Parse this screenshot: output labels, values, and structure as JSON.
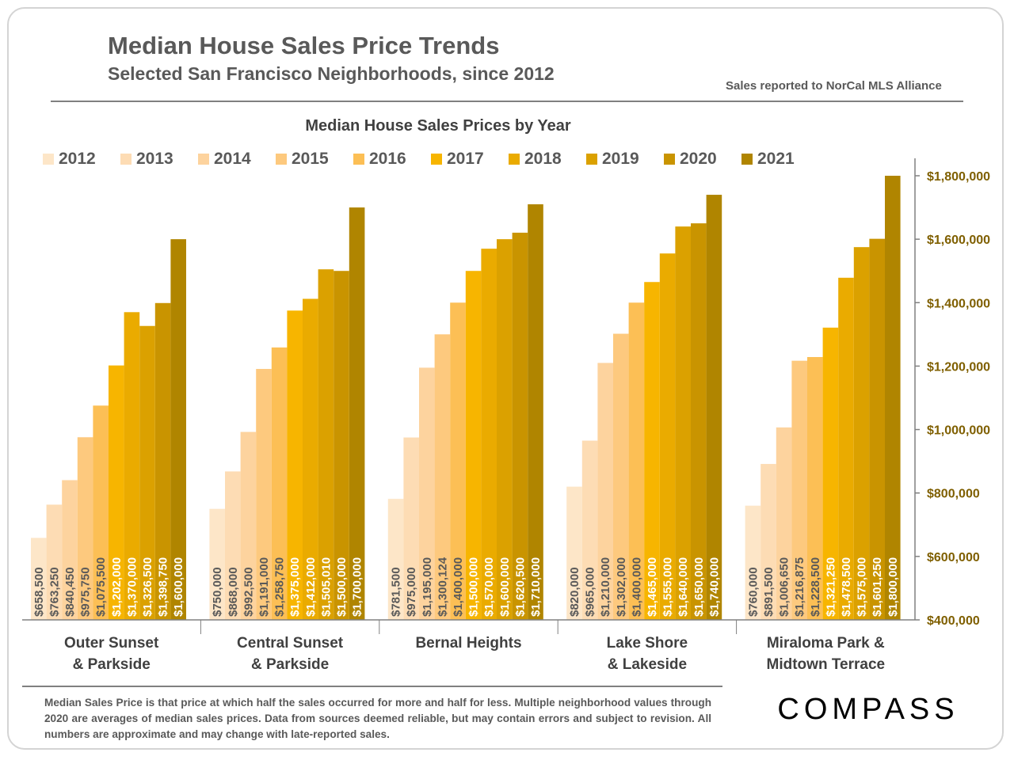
{
  "header": {
    "title": "Median House Sales Price Trends",
    "subtitle": "Selected San Francisco Neighborhoods, since 2012",
    "source": "Sales reported to NorCal MLS Alliance"
  },
  "footnote": "Median Sales Price is that price at which half the sales occurred for more and half for less. Multiple neighborhood values through 2020 are averages of median sales prices. Data from sources deemed reliable, but may contain errors and subject to revision.  All numbers are approximate and may change with late-reported sales.",
  "logo": {
    "text": "COMPASS"
  },
  "chart_data": {
    "type": "bar",
    "title": "Median House Sales Prices by Year",
    "xlabel": "",
    "ylabel": "",
    "ylim": [
      400000,
      1800000
    ],
    "y_ticks": [
      400000,
      600000,
      800000,
      1000000,
      1200000,
      1400000,
      1600000,
      1800000
    ],
    "y_tick_labels": [
      "$400,000",
      "$600,000",
      "$800,000",
      "$1,000,000",
      "$1,200,000",
      "$1,400,000",
      "$1,600,000",
      "$1,800,000"
    ],
    "y_axis_side": "right",
    "grid": false,
    "legend_position": "top",
    "categories": [
      "Outer Sunset & Parkside",
      "Central Sunset & Parkside",
      "Bernal Heights",
      "Lake Shore & Lakeside",
      "Miraloma Park & Midtown Terrace"
    ],
    "category_label_lines": [
      [
        "Outer Sunset",
        "& Parkside"
      ],
      [
        "Central Sunset",
        "& Parkside"
      ],
      [
        "Bernal Heights"
      ],
      [
        "Lake Shore",
        "& Lakeside"
      ],
      [
        "Miraloma Park &",
        "Midtown Terrace"
      ]
    ],
    "series": [
      {
        "name": "2012",
        "color": "#fde6c8",
        "values": [
          658500,
          750000,
          781500,
          820000,
          760000
        ],
        "labels": [
          "$658,500",
          "$750,000",
          "$781,500",
          "$820,000",
          "$760,000"
        ]
      },
      {
        "name": "2013",
        "color": "#fddcb4",
        "values": [
          763250,
          868000,
          975000,
          965000,
          891500
        ],
        "labels": [
          "$763,250",
          "$868,000",
          "$975,000",
          "$965,000",
          "$891,500"
        ]
      },
      {
        "name": "2014",
        "color": "#fdd39e",
        "values": [
          840450,
          992500,
          1195000,
          1210000,
          1006650
        ],
        "labels": [
          "$840,450",
          "$992,500",
          "$1,195,000",
          "$1,210,000",
          "$1,006,650"
        ]
      },
      {
        "name": "2015",
        "color": "#fdc97e",
        "values": [
          975750,
          1191000,
          1300124,
          1302000,
          1216875
        ],
        "labels": [
          "$975,750",
          "$1,191,000",
          "$1,300,124",
          "$1,302,000",
          "$1,216,875"
        ]
      },
      {
        "name": "2016",
        "color": "#fcbf55",
        "values": [
          1075500,
          1258750,
          1400000,
          1400000,
          1228500
        ],
        "labels": [
          "$1,075,500",
          "$1,258,750",
          "$1,400,000",
          "$1,400,000",
          "$1,228,500"
        ]
      },
      {
        "name": "2017",
        "color": "#f7b500",
        "values": [
          1202000,
          1375000,
          1500000,
          1465000,
          1321250
        ],
        "labels": [
          "$1,202,000",
          "$1,375,000",
          "$1,500,000",
          "$1,465,000",
          "$1,321,250"
        ]
      },
      {
        "name": "2018",
        "color": "#eaab00",
        "values": [
          1370000,
          1412000,
          1570000,
          1555000,
          1478500
        ],
        "labels": [
          "$1,370,000",
          "$1,412,000",
          "$1,570,000",
          "$1,555,000",
          "$1,478,500"
        ]
      },
      {
        "name": "2019",
        "color": "#dba100",
        "values": [
          1326500,
          1505010,
          1600000,
          1640000,
          1575000
        ],
        "labels": [
          "$1,326,500",
          "$1,505,010",
          "$1,600,000",
          "$1,640,000",
          "$1,575,000"
        ]
      },
      {
        "name": "2020",
        "color": "#c99400",
        "values": [
          1398750,
          1500000,
          1620500,
          1650000,
          1601250
        ],
        "labels": [
          "$1,398,750",
          "$1,500,000",
          "$1,620,500",
          "$1,650,000",
          "$1,601,250"
        ]
      },
      {
        "name": "2021",
        "color": "#b08500",
        "values": [
          1600000,
          1700000,
          1710000,
          1740000,
          1800000
        ],
        "labels": [
          "$1,600,000",
          "$1,700,000",
          "$1,710,000",
          "$1,740,000",
          "$1,800,000"
        ]
      }
    ]
  }
}
